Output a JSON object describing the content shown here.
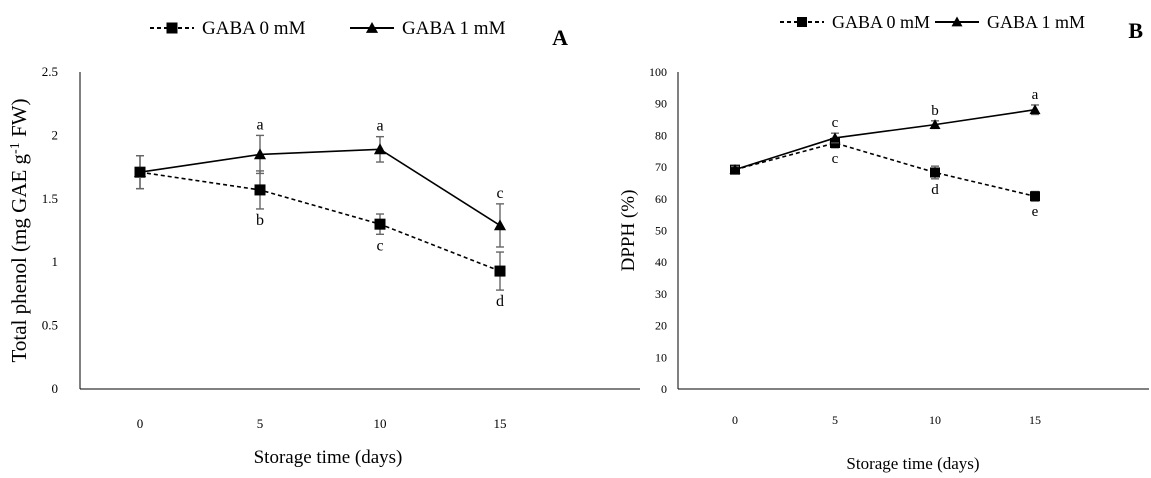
{
  "chart_data": [
    {
      "type": "line",
      "panel_label": "A",
      "xlabel": "Storage time (days)",
      "ylabel": "Total phenol (mg GAE g",
      "ylabel_sup": "-1",
      "ylabel_tail": " FW)",
      "x": [
        0,
        5,
        10,
        15
      ],
      "ylim": [
        0,
        2.5
      ],
      "yticks": [
        "0",
        "0.5",
        "1",
        "1.5",
        "2",
        "2.5"
      ],
      "grid": false,
      "legend_position": "top",
      "series": [
        {
          "name": "GABA 0 mM",
          "marker": "square",
          "line": "dashed",
          "values": [
            1.71,
            1.57,
            1.3,
            0.93
          ],
          "error": [
            0.13,
            0.15,
            0.08,
            0.15
          ],
          "letters": [
            "",
            "b",
            "c",
            "d"
          ]
        },
        {
          "name": "GABA 1 mM",
          "marker": "triangle",
          "line": "solid",
          "values": [
            1.71,
            1.85,
            1.89,
            1.29
          ],
          "error": [
            0.13,
            0.15,
            0.1,
            0.17
          ],
          "letters": [
            "",
            "a",
            "a",
            "c"
          ]
        }
      ]
    },
    {
      "type": "line",
      "panel_label": "B",
      "xlabel": "Storage time (days)",
      "ylabel": "DPPH (%)",
      "x": [
        0,
        5,
        10,
        15
      ],
      "ylim": [
        0,
        100
      ],
      "yticks": [
        "0",
        "10",
        "20",
        "30",
        "40",
        "50",
        "60",
        "70",
        "80",
        "90",
        "100"
      ],
      "grid": false,
      "legend_position": "top",
      "series": [
        {
          "name": "GABA 0 mM",
          "marker": "square",
          "line": "dashed",
          "values": [
            69.2,
            77.6,
            68.3,
            60.8
          ],
          "error": [
            1.0,
            1.5,
            2.0,
            1.5
          ],
          "letters": [
            "",
            "c",
            "d",
            "e"
          ]
        },
        {
          "name": "GABA 1 mM",
          "marker": "triangle",
          "line": "solid",
          "values": [
            69.2,
            79.2,
            83.4,
            88.1
          ],
          "error": [
            1.0,
            1.5,
            1.2,
            1.5
          ],
          "letters": [
            "",
            "c",
            "b",
            "a"
          ]
        }
      ]
    }
  ]
}
